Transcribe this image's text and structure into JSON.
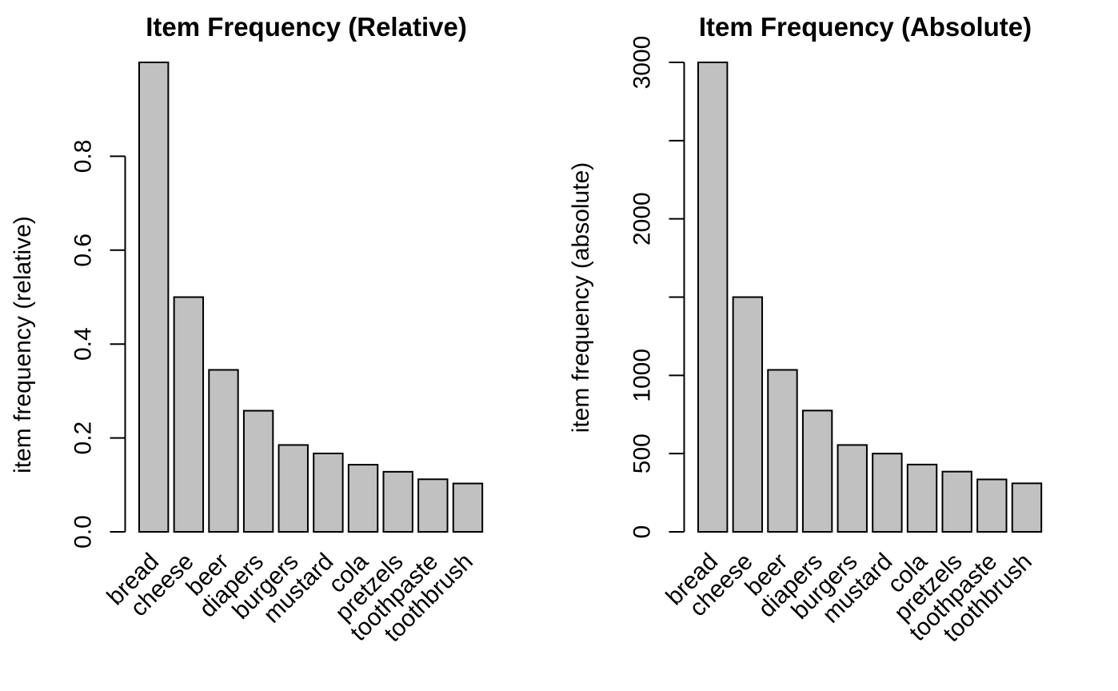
{
  "page": {
    "background": "#ffffff",
    "text_color": "#000000"
  },
  "chart_data": [
    {
      "type": "bar",
      "title": "Item Frequency (Relative)",
      "ylabel": "item frequency (relative)",
      "xlabel": "",
      "categories": [
        "bread",
        "cheese",
        "beer",
        "diapers",
        "burgers",
        "mustard",
        "cola",
        "pretzels",
        "toothpaste",
        "toothbrush"
      ],
      "values": [
        1.0,
        0.5,
        0.345,
        0.258,
        0.185,
        0.167,
        0.143,
        0.128,
        0.112,
        0.103
      ],
      "ylim": [
        0,
        1.0
      ],
      "ticks": [
        {
          "v": 0.0,
          "label": "0.0"
        },
        {
          "v": 0.2,
          "label": "0.2"
        },
        {
          "v": 0.4,
          "label": "0.4"
        },
        {
          "v": 0.6,
          "label": "0.6"
        },
        {
          "v": 0.8,
          "label": "0.8"
        }
      ],
      "grid": false,
      "legend": null,
      "bar_fill": "#c1c1c1",
      "bar_stroke": "#000000",
      "x_label_rotation_deg": 45
    },
    {
      "type": "bar",
      "title": "Item Frequency (Absolute)",
      "ylabel": "item frequency (absolute)",
      "xlabel": "",
      "categories": [
        "bread",
        "cheese",
        "beer",
        "diapers",
        "burgers",
        "mustard",
        "cola",
        "pretzels",
        "toothpaste",
        "toothbrush"
      ],
      "values": [
        3000,
        1500,
        1035,
        775,
        555,
        500,
        430,
        385,
        335,
        310
      ],
      "ylim": [
        0,
        3000
      ],
      "ticks": [
        {
          "v": 0,
          "label": "0"
        },
        {
          "v": 500,
          "label": "500"
        },
        {
          "v": 1000,
          "label": "1000"
        },
        {
          "v": 1500,
          "label": ""
        },
        {
          "v": 2000,
          "label": "2000"
        },
        {
          "v": 2500,
          "label": ""
        },
        {
          "v": 3000,
          "label": "3000"
        }
      ],
      "grid": false,
      "legend": null,
      "bar_fill": "#c1c1c1",
      "bar_stroke": "#000000",
      "x_label_rotation_deg": 45
    }
  ]
}
